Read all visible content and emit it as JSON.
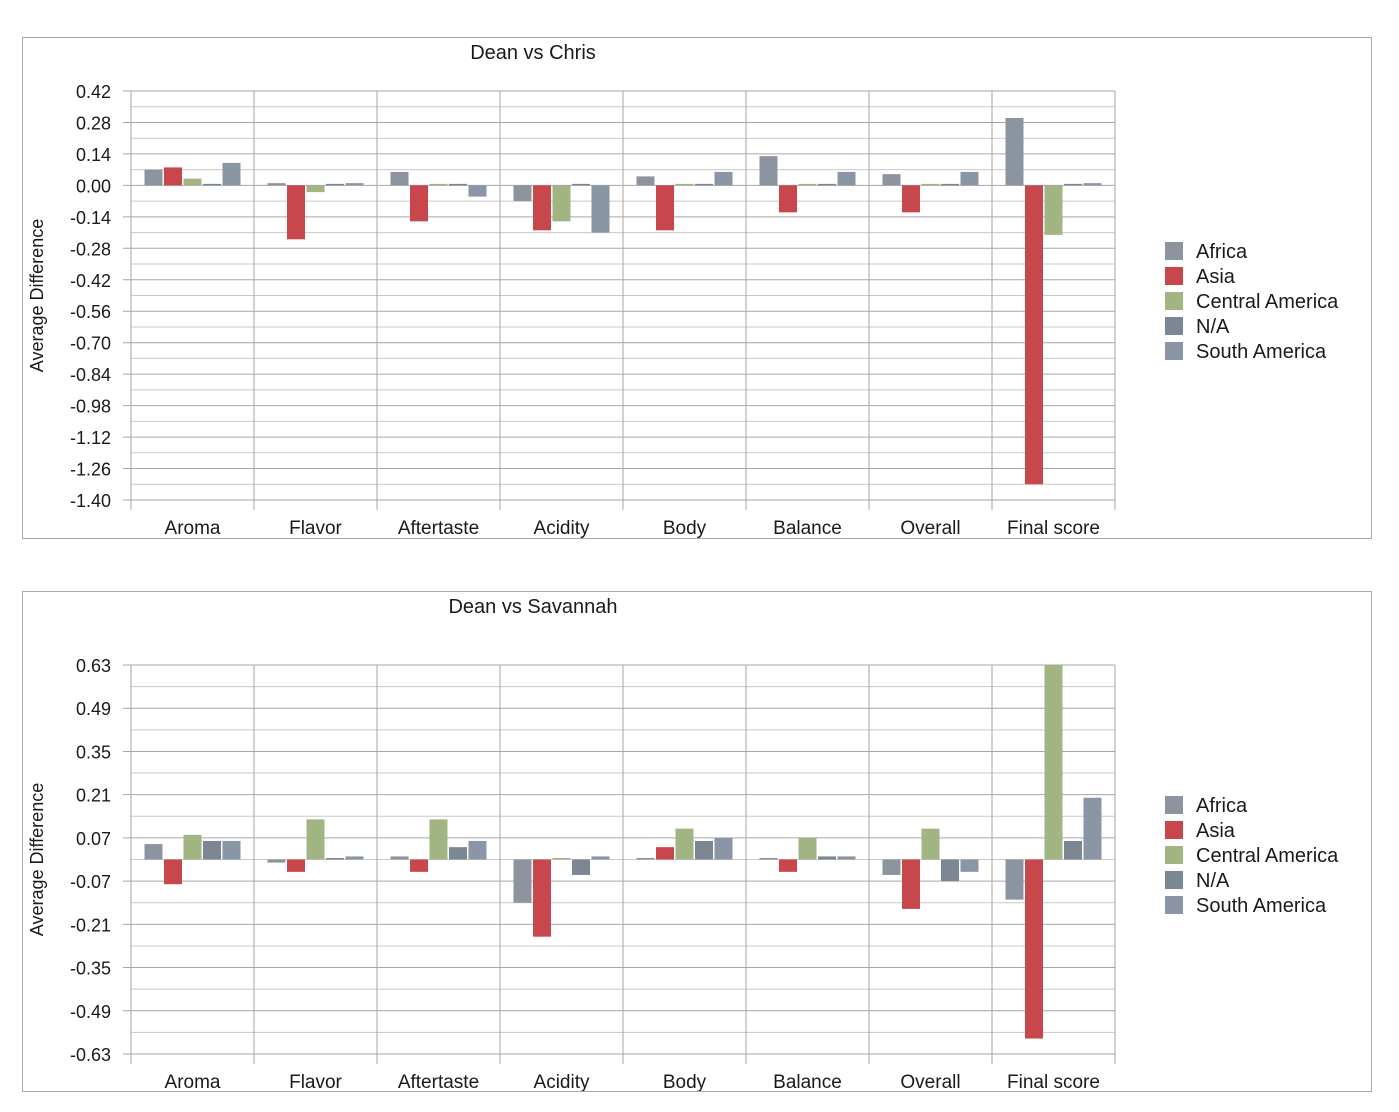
{
  "chart_data": [
    {
      "type": "bar",
      "title": "Dean vs Chris",
      "xlabel": "",
      "ylabel": "Average Difference",
      "ylim": [
        -1.4,
        0.42
      ],
      "yticks": [
        "0.42",
        "0.28",
        "0.14",
        "0.00",
        "-0.14",
        "-0.28",
        "-0.42",
        "-0.56",
        "-0.70",
        "-0.84",
        "-0.98",
        "-1.12",
        "-1.26",
        "-1.40"
      ],
      "grid": true,
      "legend": "right",
      "categories": [
        "Aroma",
        "Flavor",
        "Aftertaste",
        "Acidity",
        "Body",
        "Balance",
        "Overall",
        "Final score"
      ],
      "series": [
        {
          "name": "Africa",
          "color": "#8c959f",
          "values": [
            0.07,
            0.01,
            0.06,
            -0.07,
            0.04,
            0.13,
            0.05,
            0.3
          ]
        },
        {
          "name": "Asia",
          "color": "#c8474c",
          "values": [
            0.08,
            -0.24,
            -0.16,
            -0.2,
            -0.2,
            -0.12,
            -0.12,
            -1.33
          ]
        },
        {
          "name": "Central America",
          "color": "#a1b583",
          "values": [
            0.03,
            -0.03,
            0.0,
            -0.16,
            0.0,
            0.0,
            0.0,
            -0.22
          ]
        },
        {
          "name": "N/A",
          "color": "#7c8794",
          "values": [
            0.0,
            0.0,
            0.0,
            0.0,
            0.0,
            0.0,
            0.0,
            0.0
          ]
        },
        {
          "name": "South America",
          "color": "#8a96a5",
          "values": [
            0.1,
            0.01,
            -0.05,
            -0.21,
            0.06,
            0.06,
            0.06,
            0.01
          ]
        }
      ]
    },
    {
      "type": "bar",
      "title": "Dean vs Savannah",
      "xlabel": "",
      "ylabel": "Average Difference",
      "ylim": [
        -0.63,
        0.63
      ],
      "yticks": [
        "0.63",
        "0.49",
        "0.35",
        "0.21",
        "0.07",
        "-0.07",
        "-0.21",
        "-0.35",
        "-0.49",
        "-0.63"
      ],
      "grid": true,
      "legend": "right",
      "categories": [
        "Aroma",
        "Flavor",
        "Aftertaste",
        "Acidity",
        "Body",
        "Balance",
        "Overall",
        "Final score"
      ],
      "series": [
        {
          "name": "Africa",
          "color": "#8c959f",
          "values": [
            0.05,
            -0.01,
            0.01,
            -0.14,
            0.005,
            0.0,
            -0.05,
            -0.13
          ]
        },
        {
          "name": "Asia",
          "color": "#c8474c",
          "values": [
            -0.08,
            -0.04,
            -0.04,
            -0.25,
            0.04,
            -0.04,
            -0.16,
            -0.58
          ]
        },
        {
          "name": "Central America",
          "color": "#a1b583",
          "values": [
            0.08,
            0.13,
            0.13,
            0.005,
            0.1,
            0.07,
            0.1,
            0.63
          ]
        },
        {
          "name": "N/A",
          "color": "#7c8794",
          "values": [
            0.06,
            0.0,
            0.04,
            -0.05,
            0.06,
            0.01,
            -0.07,
            0.06
          ]
        },
        {
          "name": "South America",
          "color": "#8a96a5",
          "values": [
            0.06,
            0.01,
            0.06,
            0.01,
            0.07,
            0.01,
            -0.04,
            0.2
          ]
        }
      ]
    }
  ]
}
